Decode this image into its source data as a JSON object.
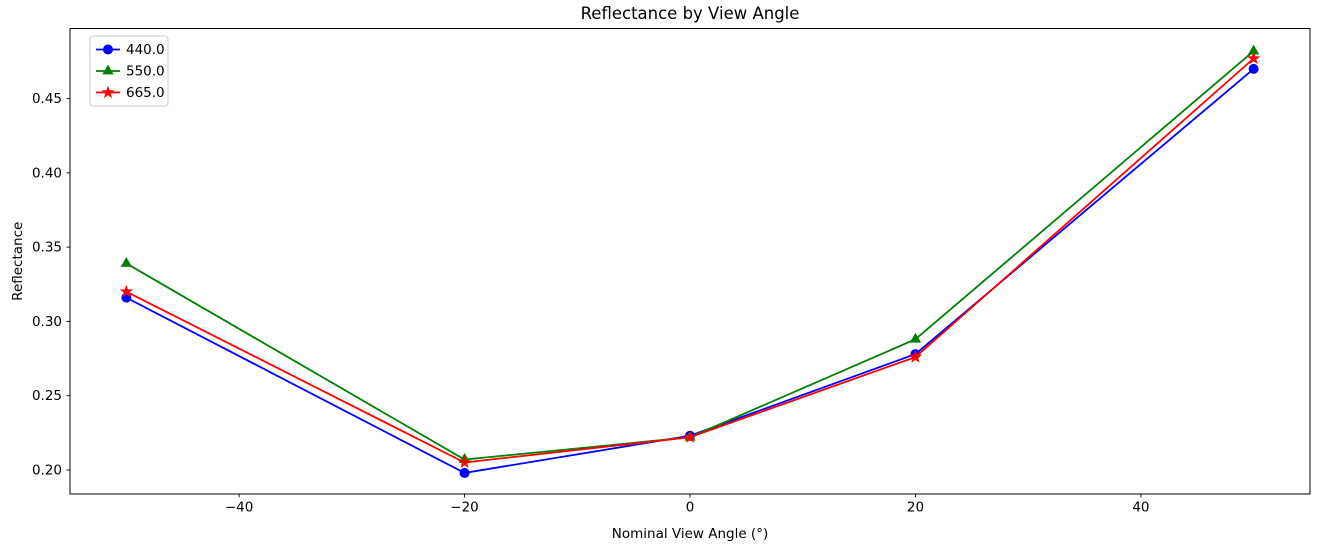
{
  "chart_data": {
    "type": "line",
    "title": "Reflectance by View Angle",
    "xlabel": "Nominal View Angle (°)",
    "ylabel": "Reflectance",
    "x": [
      -50,
      -20,
      0,
      20,
      50
    ],
    "series": [
      {
        "name": "440.0",
        "color": "#0000ff",
        "marker": "circle",
        "values": [
          0.316,
          0.198,
          0.223,
          0.278,
          0.47
        ]
      },
      {
        "name": "550.0",
        "color": "#008000",
        "marker": "triangle",
        "values": [
          0.339,
          0.207,
          0.222,
          0.288,
          0.482
        ]
      },
      {
        "name": "665.0",
        "color": "#ff0000",
        "marker": "star",
        "values": [
          0.32,
          0.205,
          0.222,
          0.276,
          0.477
        ]
      }
    ],
    "xlim": [
      -55,
      55
    ],
    "ylim": [
      0.1838,
      0.4972
    ],
    "xticks": [
      -40,
      -20,
      0,
      20,
      40
    ],
    "xtick_labels": [
      "−40",
      "−20",
      "0",
      "20",
      "40"
    ],
    "yticks": [
      0.2,
      0.25,
      0.3,
      0.35,
      0.4,
      0.45
    ],
    "ytick_labels": [
      "0.20",
      "0.25",
      "0.30",
      "0.35",
      "0.40",
      "0.45"
    ],
    "legend": {
      "position": "upper-left",
      "entries": [
        "440.0",
        "550.0",
        "665.0"
      ]
    },
    "grid": false,
    "colors": {
      "background": "#ffffff",
      "axis": "#000000",
      "text": "#000000",
      "legend_border": "#cccccc",
      "legend_fill": "#ffffff"
    }
  }
}
